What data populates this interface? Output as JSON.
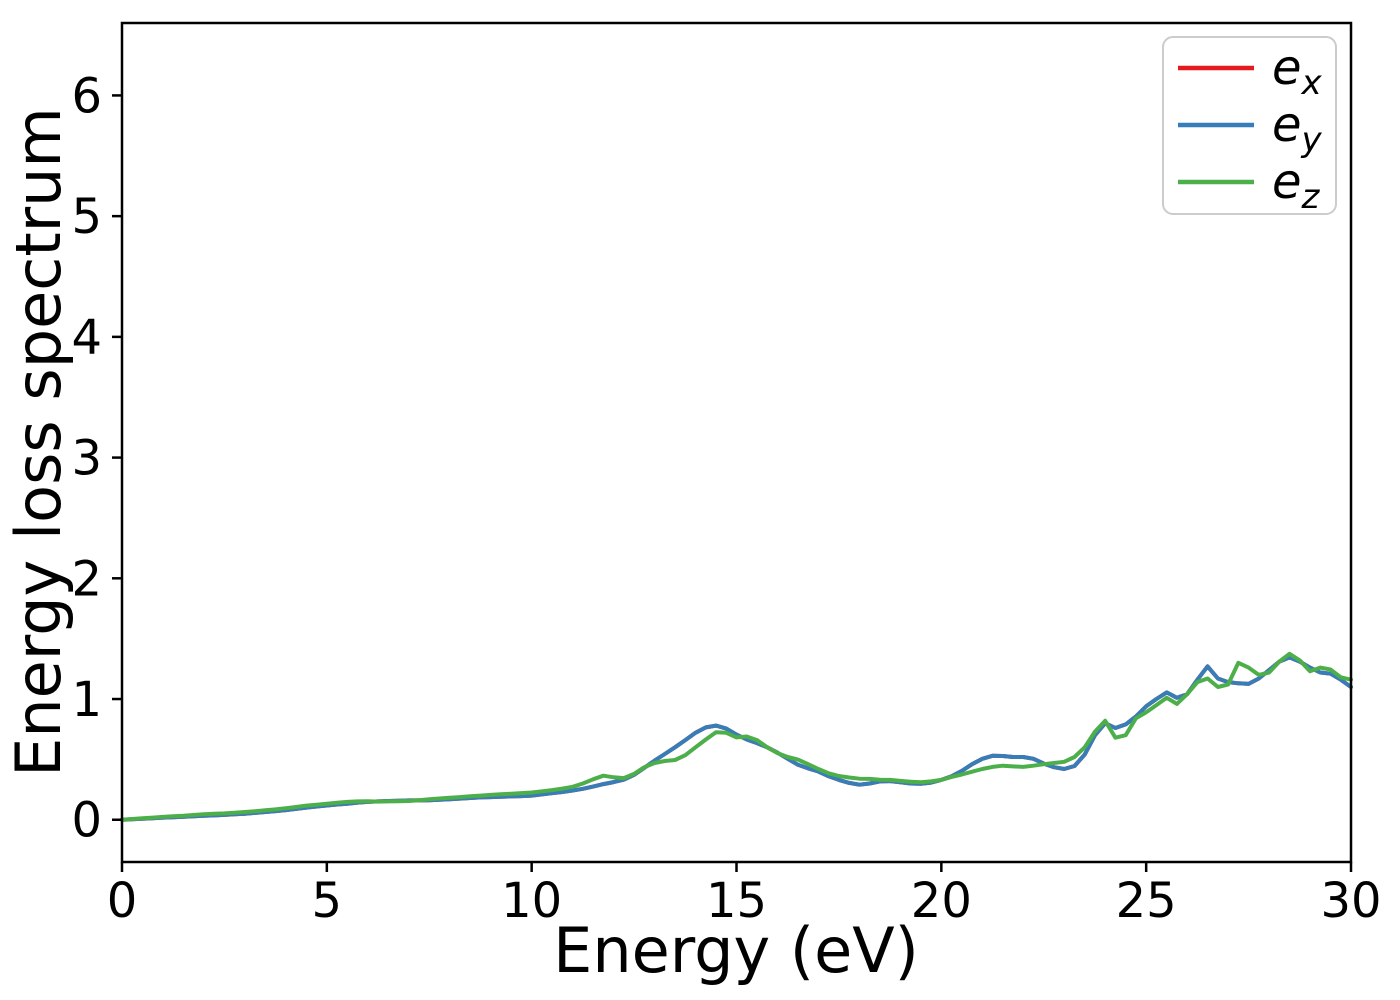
{
  "chart_data": {
    "type": "line",
    "title": "",
    "xlabel": "Energy (eV)",
    "ylabel": "Energy loss spectrum",
    "xlim": [
      0,
      30
    ],
    "ylim": [
      -0.35,
      6.6
    ],
    "xticks": [
      0,
      5,
      10,
      15,
      20,
      25,
      30
    ],
    "xtick_labels": [
      "0",
      "5",
      "10",
      "15",
      "20",
      "25",
      "30"
    ],
    "yticks": [
      0,
      1,
      2,
      3,
      4,
      5,
      6
    ],
    "ytick_labels": [
      "0",
      "1",
      "2",
      "3",
      "4",
      "5",
      "6"
    ],
    "grid": false,
    "legend_position": "upper right",
    "axis_color": "#000000",
    "legend_border_color": "#cccccc",
    "x_start": 0,
    "x_step": 0.25,
    "series": [
      {
        "name": "e_x",
        "label_base": "e",
        "label_sub": "x",
        "color": "#e41a1c",
        "note": "fully overlapped by e_y",
        "values": [
          0.0,
          0.004,
          0.008,
          0.013,
          0.018,
          0.021,
          0.025,
          0.029,
          0.033,
          0.036,
          0.04,
          0.045,
          0.05,
          0.057,
          0.064,
          0.072,
          0.08,
          0.09,
          0.1,
          0.11,
          0.118,
          0.126,
          0.132,
          0.142,
          0.148,
          0.152,
          0.155,
          0.158,
          0.16,
          0.16,
          0.162,
          0.166,
          0.17,
          0.175,
          0.18,
          0.185,
          0.188,
          0.19,
          0.193,
          0.196,
          0.2,
          0.21,
          0.22,
          0.23,
          0.242,
          0.256,
          0.275,
          0.295,
          0.312,
          0.332,
          0.372,
          0.43,
          0.49,
          0.545,
          0.6,
          0.66,
          0.72,
          0.765,
          0.78,
          0.755,
          0.705,
          0.665,
          0.635,
          0.6,
          0.555,
          0.505,
          0.455,
          0.425,
          0.4,
          0.36,
          0.33,
          0.305,
          0.29,
          0.3,
          0.318,
          0.32,
          0.31,
          0.3,
          0.298,
          0.308,
          0.33,
          0.36,
          0.405,
          0.46,
          0.505,
          0.53,
          0.528,
          0.52,
          0.52,
          0.505,
          0.465,
          0.435,
          0.42,
          0.445,
          0.54,
          0.7,
          0.8,
          0.76,
          0.79,
          0.855,
          0.94,
          1.0,
          1.055,
          1.01,
          1.04,
          1.16,
          1.27,
          1.17,
          1.14,
          1.13,
          1.125,
          1.17,
          1.24,
          1.31,
          1.345,
          1.31,
          1.26,
          1.22,
          1.21,
          1.16,
          1.1
        ]
      },
      {
        "name": "e_y",
        "label_base": "e",
        "label_sub": "y",
        "color": "#377eb8",
        "note": "identical to e_x, drawn on top of it",
        "values": [
          0.0,
          0.004,
          0.008,
          0.013,
          0.018,
          0.021,
          0.025,
          0.029,
          0.033,
          0.036,
          0.04,
          0.045,
          0.05,
          0.057,
          0.064,
          0.072,
          0.08,
          0.09,
          0.1,
          0.11,
          0.118,
          0.126,
          0.132,
          0.142,
          0.148,
          0.152,
          0.155,
          0.158,
          0.16,
          0.16,
          0.162,
          0.166,
          0.17,
          0.175,
          0.18,
          0.185,
          0.188,
          0.19,
          0.193,
          0.196,
          0.2,
          0.21,
          0.22,
          0.23,
          0.242,
          0.256,
          0.275,
          0.295,
          0.312,
          0.332,
          0.372,
          0.43,
          0.49,
          0.545,
          0.6,
          0.66,
          0.72,
          0.765,
          0.78,
          0.755,
          0.705,
          0.665,
          0.635,
          0.6,
          0.555,
          0.505,
          0.455,
          0.425,
          0.4,
          0.36,
          0.33,
          0.305,
          0.29,
          0.3,
          0.318,
          0.32,
          0.31,
          0.3,
          0.298,
          0.308,
          0.33,
          0.36,
          0.405,
          0.46,
          0.505,
          0.53,
          0.528,
          0.52,
          0.52,
          0.505,
          0.465,
          0.435,
          0.42,
          0.445,
          0.54,
          0.7,
          0.8,
          0.76,
          0.79,
          0.855,
          0.94,
          1.0,
          1.055,
          1.01,
          1.04,
          1.16,
          1.27,
          1.17,
          1.14,
          1.13,
          1.125,
          1.17,
          1.24,
          1.31,
          1.345,
          1.31,
          1.26,
          1.22,
          1.21,
          1.16,
          1.1
        ]
      },
      {
        "name": "e_z",
        "label_base": "e",
        "label_sub": "z",
        "color": "#4daf4a",
        "note": "",
        "values": [
          0.0,
          0.006,
          0.012,
          0.018,
          0.024,
          0.029,
          0.033,
          0.039,
          0.045,
          0.049,
          0.053,
          0.058,
          0.064,
          0.071,
          0.078,
          0.086,
          0.095,
          0.106,
          0.117,
          0.125,
          0.133,
          0.141,
          0.148,
          0.152,
          0.154,
          0.15,
          0.152,
          0.153,
          0.155,
          0.162,
          0.17,
          0.176,
          0.182,
          0.188,
          0.194,
          0.2,
          0.206,
          0.211,
          0.216,
          0.221,
          0.226,
          0.236,
          0.246,
          0.258,
          0.273,
          0.3,
          0.335,
          0.365,
          0.352,
          0.345,
          0.38,
          0.435,
          0.47,
          0.487,
          0.495,
          0.535,
          0.6,
          0.665,
          0.725,
          0.72,
          0.682,
          0.69,
          0.66,
          0.6,
          0.552,
          0.52,
          0.498,
          0.46,
          0.42,
          0.385,
          0.362,
          0.35,
          0.34,
          0.338,
          0.332,
          0.33,
          0.322,
          0.315,
          0.31,
          0.318,
          0.33,
          0.355,
          0.375,
          0.398,
          0.42,
          0.438,
          0.448,
          0.442,
          0.438,
          0.448,
          0.46,
          0.47,
          0.48,
          0.52,
          0.6,
          0.73,
          0.82,
          0.68,
          0.7,
          0.84,
          0.89,
          0.95,
          1.01,
          0.96,
          1.04,
          1.14,
          1.17,
          1.1,
          1.12,
          1.3,
          1.26,
          1.2,
          1.22,
          1.31,
          1.375,
          1.32,
          1.23,
          1.26,
          1.245,
          1.18,
          1.16
        ]
      }
    ]
  }
}
